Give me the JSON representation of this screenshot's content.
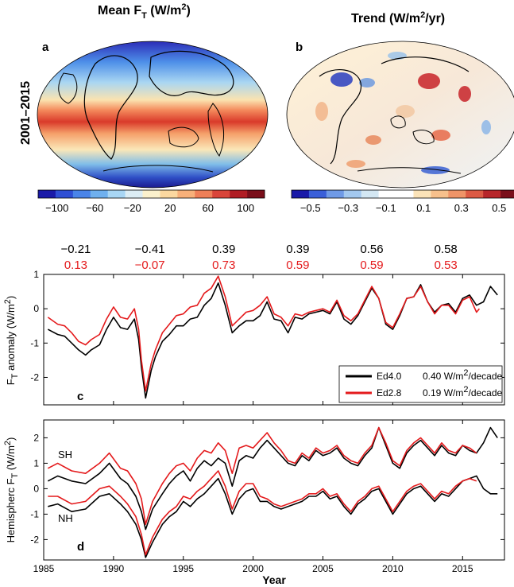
{
  "maps": {
    "left_title": "Mean F",
    "left_title_sub": "T",
    "left_title_units": " (W/m",
    "left_title_units_sup": "2",
    "left_title_close": ")",
    "right_title": "Trend (W/m",
    "right_title_sup": "2",
    "right_title_close": "/yr)",
    "row_label": "2001–2015",
    "left_letter": "a",
    "right_letter": "b",
    "left_colorbar_ticks": [
      "−100",
      "−60",
      "−20",
      "20",
      "60",
      "100"
    ],
    "right_colorbar_ticks": [
      "−0.5",
      "−0.3",
      "−0.1",
      "0.1",
      "0.3",
      "0.5"
    ]
  },
  "correlations": {
    "black": [
      "−0.21",
      "−0.41",
      "0.39",
      "0.39",
      "0.56",
      "0.58"
    ],
    "red": [
      "0.13",
      "−0.07",
      "0.73",
      "0.59",
      "0.59",
      "0.53"
    ]
  },
  "colors": {
    "ed40": "#000000",
    "ed28": "#e41a1c"
  },
  "chart_data": [
    {
      "type": "line",
      "panel_letter": "c",
      "ylabel": "F",
      "ylabel_sub": "T",
      "ylabel_rest": " anomaly (W/m",
      "ylabel_sup": "2",
      "ylabel_close": ")",
      "xlim": [
        1985,
        2018
      ],
      "ylim": [
        -2.8,
        1.0
      ],
      "xticks": [
        1985,
        1990,
        1995,
        2000,
        2005,
        2010,
        2015
      ],
      "yticks": [
        -2,
        -1,
        0,
        1
      ],
      "legend_position": "bottom-right",
      "series": [
        {
          "name": "Ed4.0",
          "trend_label": "0.40 W/m",
          "trend_sup": "2",
          "trend_close": "/decade",
          "x": [
            1985.3,
            1986.0,
            1986.5,
            1987.0,
            1987.5,
            1988.0,
            1988.4,
            1989.0,
            1989.5,
            1990.0,
            1990.5,
            1991.0,
            1991.5,
            1991.8,
            1992.0,
            1992.3,
            1992.7,
            1993.0,
            1993.5,
            1994.0,
            1994.5,
            1995.0,
            1995.5,
            1996.0,
            1996.5,
            1997.0,
            1997.5,
            1998.0,
            1998.5,
            1999.0,
            1999.5,
            2000.0,
            2000.5,
            2001.0,
            2001.5,
            2002.0,
            2002.5,
            2003.0,
            2003.5,
            2004.0,
            2004.5,
            2005.0,
            2005.5,
            2006.0,
            2006.5,
            2007.0,
            2007.5,
            2008.0,
            2008.5,
            2009.0,
            2009.5,
            2010.0,
            2010.5,
            2011.0,
            2011.5,
            2012.0,
            2012.5,
            2013.0,
            2013.5,
            2014.0,
            2014.5,
            2015.0,
            2015.5,
            2016.0,
            2016.5,
            2017.0,
            2017.5
          ],
          "values": [
            -0.6,
            -0.75,
            -0.8,
            -1.0,
            -1.2,
            -1.35,
            -1.2,
            -1.05,
            -0.6,
            -0.25,
            -0.55,
            -0.6,
            -0.3,
            -0.9,
            -1.7,
            -2.6,
            -1.8,
            -1.4,
            -0.95,
            -0.75,
            -0.5,
            -0.5,
            -0.3,
            -0.25,
            0.1,
            0.3,
            0.75,
            0.1,
            -0.7,
            -0.5,
            -0.35,
            -0.35,
            -0.2,
            0.2,
            -0.3,
            -0.35,
            -0.7,
            -0.25,
            -0.3,
            -0.15,
            -0.1,
            -0.05,
            -0.15,
            0.2,
            -0.3,
            -0.45,
            -0.2,
            0.2,
            0.6,
            0.3,
            -0.45,
            -0.6,
            -0.2,
            0.3,
            0.35,
            0.7,
            0.2,
            -0.1,
            0.1,
            0.15,
            -0.1,
            0.3,
            0.4,
            0.1,
            0.2,
            0.65,
            0.4
          ]
        },
        {
          "name": "Ed2.8",
          "trend_label": "0.19 W/m",
          "trend_sup": "2",
          "trend_close": "/decade",
          "x": [
            1985.3,
            1986.0,
            1986.5,
            1987.0,
            1987.5,
            1988.0,
            1988.4,
            1989.0,
            1989.5,
            1990.0,
            1990.5,
            1991.0,
            1991.5,
            1991.8,
            1992.0,
            1992.3,
            1992.7,
            1993.0,
            1993.5,
            1994.0,
            1994.5,
            1995.0,
            1995.5,
            1996.0,
            1996.5,
            1997.0,
            1997.5,
            1998.0,
            1998.5,
            1999.0,
            1999.5,
            2000.0,
            2000.5,
            2001.0,
            2001.5,
            2002.0,
            2002.5,
            2003.0,
            2003.5,
            2004.0,
            2004.5,
            2005.0,
            2005.5,
            2006.0,
            2006.5,
            2007.0,
            2007.5,
            2008.0,
            2008.5,
            2009.0,
            2009.5,
            2010.0,
            2010.5,
            2011.0,
            2011.5,
            2012.0,
            2012.5,
            2013.0,
            2013.5,
            2014.0,
            2014.5,
            2015.0,
            2015.5,
            2016.0,
            2016.2
          ],
          "values": [
            -0.25,
            -0.45,
            -0.5,
            -0.7,
            -0.95,
            -1.05,
            -0.9,
            -0.75,
            -0.3,
            0.05,
            -0.25,
            -0.3,
            0.0,
            -0.6,
            -1.5,
            -2.4,
            -1.6,
            -1.2,
            -0.7,
            -0.45,
            -0.2,
            -0.15,
            0.05,
            0.1,
            0.45,
            0.6,
            0.95,
            0.35,
            -0.5,
            -0.3,
            -0.1,
            -0.05,
            0.1,
            0.35,
            -0.15,
            -0.25,
            -0.5,
            -0.15,
            -0.2,
            -0.1,
            -0.05,
            0.0,
            -0.1,
            0.25,
            -0.2,
            -0.35,
            -0.15,
            0.25,
            0.65,
            0.3,
            -0.4,
            -0.55,
            -0.15,
            0.3,
            0.35,
            0.65,
            0.2,
            -0.15,
            0.1,
            0.1,
            -0.15,
            0.25,
            0.35,
            -0.1,
            0.0
          ]
        }
      ]
    },
    {
      "type": "line",
      "panel_letter": "d",
      "ylabel": "Hemispherc F",
      "ylabel_sub": "T",
      "ylabel_rest": " (W/m",
      "ylabel_sup": "2",
      "ylabel_close": ")",
      "xlabel": "Year",
      "xlim": [
        1985,
        2018
      ],
      "ylim": [
        -2.8,
        2.7
      ],
      "xticks": [
        1985,
        1990,
        1995,
        2000,
        2005,
        2010,
        2015
      ],
      "yticks": [
        -2,
        -1,
        0,
        1,
        2
      ],
      "annotations": [
        "SH",
        "NH"
      ],
      "series": [
        {
          "name": "SH Ed4.0",
          "x": [
            1985.3,
            1986.0,
            1987.0,
            1988.0,
            1989.0,
            1989.7,
            1990.5,
            1991.0,
            1991.6,
            1992.0,
            1992.3,
            1992.8,
            1993.5,
            1994.0,
            1994.5,
            1995.0,
            1995.5,
            1996.0,
            1996.5,
            1997.0,
            1997.5,
            1998.0,
            1998.5,
            1999.0,
            1999.5,
            2000.0,
            2000.5,
            2001.0,
            2001.5,
            2002.0,
            2002.5,
            2003.0,
            2003.5,
            2004.0,
            2004.5,
            2005.0,
            2005.5,
            2006.0,
            2006.5,
            2007.0,
            2007.5,
            2008.0,
            2008.5,
            2009.0,
            2009.5,
            2010.0,
            2010.5,
            2011.0,
            2011.5,
            2012.0,
            2012.5,
            2013.0,
            2013.5,
            2014.0,
            2014.5,
            2015.0,
            2015.5,
            2016.0,
            2016.5,
            2017.0,
            2017.5
          ],
          "values": [
            0.3,
            0.5,
            0.3,
            0.2,
            0.6,
            1.0,
            0.4,
            0.2,
            -0.3,
            -0.9,
            -1.6,
            -0.8,
            -0.2,
            0.2,
            0.5,
            0.7,
            0.3,
            0.8,
            1.1,
            0.9,
            1.2,
            1.0,
            0.1,
            1.1,
            1.3,
            1.2,
            1.6,
            1.9,
            1.6,
            1.3,
            1.0,
            0.9,
            1.3,
            1.1,
            1.5,
            1.3,
            1.4,
            1.6,
            1.2,
            1.0,
            0.9,
            1.3,
            1.6,
            2.4,
            1.7,
            1.0,
            0.8,
            1.4,
            1.7,
            1.9,
            1.6,
            1.3,
            1.7,
            1.4,
            1.3,
            1.7,
            1.5,
            1.4,
            1.8,
            2.4,
            2.0
          ]
        },
        {
          "name": "SH Ed2.8",
          "x": [
            1985.3,
            1986.0,
            1987.0,
            1988.0,
            1989.0,
            1989.7,
            1990.5,
            1991.0,
            1991.6,
            1992.0,
            1992.3,
            1992.8,
            1993.5,
            1994.0,
            1994.5,
            1995.0,
            1995.5,
            1996.0,
            1996.5,
            1997.0,
            1997.5,
            1998.0,
            1998.5,
            1999.0,
            1999.5,
            2000.0,
            2000.5,
            2001.0,
            2001.5,
            2002.0,
            2002.5,
            2003.0,
            2003.5,
            2004.0,
            2004.5,
            2005.0,
            2005.5,
            2006.0,
            2006.5,
            2007.0,
            2007.5,
            2008.0,
            2008.5,
            2009.0,
            2009.5,
            2010.0,
            2010.5,
            2011.0,
            2011.5,
            2012.0,
            2012.5,
            2013.0,
            2013.5,
            2014.0,
            2014.5,
            2015.0,
            2015.5,
            2016.0
          ],
          "values": [
            0.8,
            1.0,
            0.7,
            0.6,
            1.0,
            1.4,
            0.8,
            0.7,
            0.2,
            -0.4,
            -1.4,
            -0.5,
            0.2,
            0.6,
            0.9,
            1.0,
            0.7,
            1.2,
            1.5,
            1.4,
            1.8,
            1.5,
            0.6,
            1.6,
            1.7,
            1.6,
            1.9,
            2.2,
            1.8,
            1.5,
            1.1,
            1.0,
            1.4,
            1.2,
            1.6,
            1.4,
            1.5,
            1.7,
            1.3,
            1.1,
            1.0,
            1.4,
            1.7,
            2.4,
            1.8,
            1.1,
            0.9,
            1.5,
            1.8,
            2.0,
            1.7,
            1.4,
            1.8,
            1.5,
            1.4,
            1.7,
            1.6,
            1.4
          ]
        },
        {
          "name": "NH Ed4.0",
          "x": [
            1985.3,
            1986.0,
            1987.0,
            1988.0,
            1989.0,
            1989.7,
            1990.5,
            1991.0,
            1991.6,
            1992.0,
            1992.3,
            1992.8,
            1993.5,
            1994.0,
            1994.5,
            1995.0,
            1995.5,
            1996.0,
            1996.5,
            1997.0,
            1997.5,
            1998.0,
            1998.5,
            1999.0,
            1999.5,
            2000.0,
            2000.5,
            2001.0,
            2001.5,
            2002.0,
            2002.5,
            2003.0,
            2003.5,
            2004.0,
            2004.5,
            2005.0,
            2005.5,
            2006.0,
            2006.5,
            2007.0,
            2007.5,
            2008.0,
            2008.5,
            2009.0,
            2009.5,
            2010.0,
            2010.5,
            2011.0,
            2011.5,
            2012.0,
            2012.5,
            2013.0,
            2013.5,
            2014.0,
            2014.5,
            2015.0,
            2015.5,
            2016.0,
            2016.5,
            2017.0,
            2017.5
          ],
          "values": [
            -0.7,
            -0.6,
            -0.9,
            -0.8,
            -0.3,
            -0.2,
            -0.6,
            -0.9,
            -1.4,
            -2.0,
            -2.7,
            -2.1,
            -1.4,
            -1.1,
            -0.9,
            -0.5,
            -0.7,
            -0.4,
            -0.2,
            0.1,
            0.4,
            -0.2,
            -1.0,
            -0.4,
            -0.1,
            0.0,
            -0.5,
            -0.5,
            -0.7,
            -0.8,
            -0.7,
            -0.6,
            -0.5,
            -0.3,
            -0.3,
            -0.1,
            -0.4,
            -0.3,
            -0.7,
            -1.0,
            -0.6,
            -0.4,
            -0.1,
            0.0,
            -0.5,
            -1.0,
            -0.6,
            -0.2,
            0.0,
            0.1,
            -0.2,
            -0.5,
            -0.2,
            -0.3,
            0.0,
            0.3,
            0.4,
            0.5,
            0.0,
            -0.2,
            -0.2
          ]
        },
        {
          "name": "NH Ed2.8",
          "x": [
            1985.3,
            1986.0,
            1987.0,
            1988.0,
            1989.0,
            1989.7,
            1990.5,
            1991.0,
            1991.6,
            1992.0,
            1992.3,
            1992.8,
            1993.5,
            1994.0,
            1994.5,
            1995.0,
            1995.5,
            1996.0,
            1996.5,
            1997.0,
            1997.5,
            1998.0,
            1998.5,
            1999.0,
            1999.5,
            2000.0,
            2000.5,
            2001.0,
            2001.5,
            2002.0,
            2002.5,
            2003.0,
            2003.5,
            2004.0,
            2004.5,
            2005.0,
            2005.5,
            2006.0,
            2006.5,
            2007.0,
            2007.5,
            2008.0,
            2008.5,
            2009.0,
            2009.5,
            2010.0,
            2010.5,
            2011.0,
            2011.5,
            2012.0,
            2012.5,
            2013.0,
            2013.5,
            2014.0,
            2014.5,
            2015.0,
            2015.5,
            2016.0
          ],
          "values": [
            -0.3,
            -0.3,
            -0.6,
            -0.5,
            0.0,
            0.1,
            -0.3,
            -0.6,
            -1.1,
            -1.8,
            -2.6,
            -1.9,
            -1.2,
            -0.9,
            -0.7,
            -0.3,
            -0.4,
            -0.1,
            0.1,
            0.4,
            0.7,
            0.1,
            -0.8,
            -0.1,
            0.2,
            0.2,
            -0.3,
            -0.4,
            -0.6,
            -0.7,
            -0.6,
            -0.5,
            -0.4,
            -0.2,
            -0.2,
            0.0,
            -0.3,
            -0.2,
            -0.6,
            -0.9,
            -0.5,
            -0.3,
            0.0,
            0.1,
            -0.4,
            -0.9,
            -0.5,
            -0.1,
            0.1,
            0.2,
            -0.1,
            -0.4,
            -0.1,
            -0.2,
            0.1,
            0.3,
            0.4,
            0.3
          ]
        }
      ]
    }
  ]
}
